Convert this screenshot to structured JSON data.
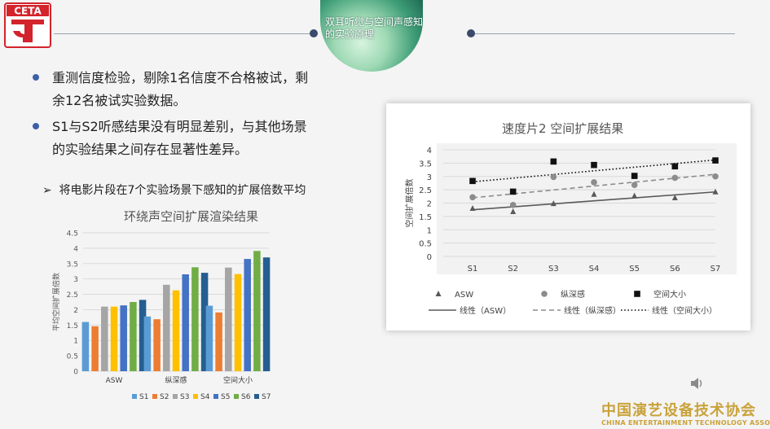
{
  "logo": {
    "text": "CETA"
  },
  "section": {
    "title_line1": "双耳听觉与空间声感知",
    "title_line2": "的实验原理"
  },
  "bullets": [
    {
      "line1": "重测信度检验，剔除1名信度不合格被试，剩",
      "line2": "余12名被试实验数据。"
    },
    {
      "line1": "S1与S2听感结果没有明显差别，与其他场景",
      "line2": "的实验结果之间存在显著性差异。"
    }
  ],
  "sub_bullet": {
    "arrow": "➢",
    "text": "将电影片段在7个实验场景下感知的扩展倍数平均"
  },
  "chart_data": [
    {
      "type": "bar",
      "title": "环绕声空间扩展渲染结果",
      "ylabel": "平均空间扩展倍数",
      "ylim": [
        0,
        4.5
      ],
      "yticks": [
        "0",
        "0.5",
        "1",
        "1.5",
        "2",
        "2.5",
        "3",
        "3.5",
        "4",
        "4.5"
      ],
      "categories": [
        "ASW",
        "纵深感",
        "空间大小"
      ],
      "series": [
        {
          "name": "S1",
          "color": "#5b9bd5",
          "values": [
            1.6,
            1.78,
            2.13
          ]
        },
        {
          "name": "S2",
          "color": "#ed7d31",
          "values": [
            1.46,
            1.69,
            1.91
          ]
        },
        {
          "name": "S3",
          "color": "#a5a5a5",
          "values": [
            2.1,
            2.81,
            3.37
          ]
        },
        {
          "name": "S4",
          "color": "#ffc000",
          "values": [
            2.1,
            2.63,
            3.16
          ]
        },
        {
          "name": "S5",
          "color": "#4472c4",
          "values": [
            2.14,
            3.15,
            3.65
          ]
        },
        {
          "name": "S6",
          "color": "#70ad47",
          "values": [
            2.25,
            3.38,
            3.91
          ]
        },
        {
          "name": "S7",
          "color": "#255e91",
          "values": [
            2.32,
            3.2,
            3.7
          ]
        }
      ],
      "legend": "bottom",
      "grid": true
    },
    {
      "type": "scatter",
      "title": "速度片2 空间扩展结果",
      "ylabel": "空间扩展倍数",
      "ylim": [
        0,
        4
      ],
      "yticks": [
        "0",
        "0.5",
        "1",
        "1.5",
        "2",
        "2.5",
        "3",
        "3.5",
        "4"
      ],
      "categories": [
        "S1",
        "S2",
        "S3",
        "S4",
        "S5",
        "S6",
        "S7"
      ],
      "series": [
        {
          "name": "ASW",
          "marker": "triangle",
          "color": "#595959",
          "values": [
            1.8,
            1.68,
            1.98,
            2.33,
            2.27,
            2.2,
            2.42
          ]
        },
        {
          "name": "纵深感",
          "marker": "circle",
          "color": "#8c8c8c",
          "values": [
            2.22,
            1.93,
            2.98,
            2.78,
            2.68,
            2.95,
            3.0
          ]
        },
        {
          "name": "空间大小",
          "marker": "square",
          "color": "#111111",
          "values": [
            2.83,
            2.43,
            3.56,
            3.43,
            3.02,
            3.38,
            3.6
          ]
        }
      ],
      "trendlines": [
        {
          "name": "线性（ASW）",
          "style": "solid",
          "color": "#595959",
          "start": 1.75,
          "end": 2.42
        },
        {
          "name": "线性（纵深感）",
          "style": "dashed",
          "color": "#8c8c8c",
          "start": 2.2,
          "end": 3.08
        },
        {
          "name": "线性（空间大小）",
          "style": "dotted",
          "color": "#111111",
          "start": 2.8,
          "end": 3.62
        }
      ],
      "legend": "bottom",
      "grid": true
    }
  ],
  "footer": {
    "cn": "中国演艺设备技术协会",
    "en": "CHINA ENTERTAINMENT TECHNOLOGY ASSOCIATION"
  }
}
